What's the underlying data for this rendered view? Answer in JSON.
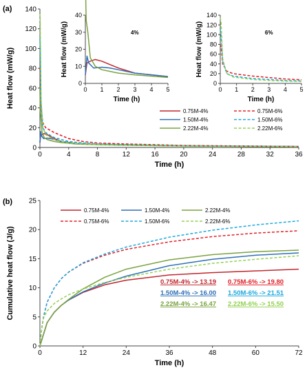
{
  "chart_data": [
    {
      "panel": "(a)",
      "type": "line",
      "xlabel": "Time (h)",
      "ylabel": "Heat flow (mW/g)",
      "xlim": [
        0,
        36
      ],
      "ylim": [
        0,
        140
      ],
      "xticks": [
        0,
        4,
        8,
        12,
        16,
        20,
        24,
        28,
        32,
        36
      ],
      "yticks": [
        0,
        20,
        40,
        60,
        80,
        100,
        120,
        140
      ],
      "legend_position": "lower-right",
      "grid": false,
      "series": [
        {
          "name": "0.75M-4%",
          "color": "#c0262d",
          "dash": "solid",
          "x": [
            0,
            0.1,
            0.3,
            0.6,
            1,
            1.5,
            2,
            3,
            5,
            8,
            12,
            20,
            36
          ],
          "y": [
            5,
            12,
            13,
            14,
            13,
            11,
            9,
            6,
            4,
            3,
            2.5,
            1.6,
            0.8
          ]
        },
        {
          "name": "1.50M-4%",
          "color": "#2e6fb7",
          "dash": "solid",
          "x": [
            0,
            0.1,
            0.2,
            0.5,
            1,
            1.5,
            2,
            3,
            5,
            8,
            12,
            20,
            36
          ],
          "y": [
            5,
            16,
            12,
            9,
            9.5,
            9,
            8,
            6,
            4,
            3,
            2.5,
            1.6,
            0.8
          ]
        },
        {
          "name": "2.22M-4%",
          "color": "#7aa23f",
          "dash": "solid",
          "x": [
            0,
            0.05,
            0.15,
            0.3,
            0.6,
            1,
            1.5,
            2,
            3,
            5,
            8,
            12,
            20,
            36
          ],
          "y": [
            60,
            37,
            30,
            15,
            10,
            8,
            7,
            6,
            5,
            3.5,
            2.8,
            2.2,
            1.4,
            0.8
          ]
        },
        {
          "name": "0.75M-6%",
          "color": "#e11e26",
          "dash": "dashed",
          "x": [
            0,
            0.05,
            0.15,
            0.4,
            0.8,
            1.5,
            2,
            3,
            4,
            6,
            8,
            12,
            20,
            36
          ],
          "y": [
            80,
            75,
            40,
            25,
            20,
            17,
            15,
            12,
            9,
            6,
            4.5,
            3.5,
            2,
            1
          ]
        },
        {
          "name": "1.50M-6%",
          "color": "#1ba8de",
          "dash": "dashed",
          "x": [
            0,
            0.05,
            0.15,
            0.4,
            0.8,
            1.5,
            2,
            3,
            4,
            6,
            8,
            12,
            20,
            36
          ],
          "y": [
            110,
            100,
            45,
            20,
            15,
            12,
            10,
            8,
            6,
            4.5,
            3.5,
            2.8,
            1.8,
            1
          ]
        },
        {
          "name": "2.22M-6%",
          "color": "#92d050",
          "dash": "dashed",
          "x": [
            0,
            0.05,
            0.15,
            0.4,
            0.8,
            1.5,
            2,
            3,
            4,
            6,
            8,
            12,
            20,
            36
          ],
          "y": [
            135,
            125,
            50,
            20,
            13,
            10,
            8,
            6,
            4.5,
            3.5,
            3,
            2.3,
            1.5,
            0.8
          ]
        }
      ],
      "insets": [
        {
          "label": "4%",
          "xlabel": "Time (h)",
          "ylabel": "Heat flow (mW/g)",
          "xlim": [
            0,
            5
          ],
          "ylim": [
            0,
            40
          ],
          "xticks": [
            0,
            1,
            2,
            3,
            4,
            5
          ],
          "yticks": [
            0,
            10,
            20,
            30,
            40
          ],
          "series_names": [
            "0.75M-4%",
            "1.50M-4%",
            "2.22M-4%"
          ]
        },
        {
          "label": "6%",
          "xlabel": "Time (h)",
          "ylabel": "Heat flow (mW/g)",
          "xlim": [
            0,
            5
          ],
          "ylim": [
            0,
            140
          ],
          "xticks": [
            0,
            1,
            2,
            3,
            4,
            5
          ],
          "yticks": [
            0,
            20,
            40,
            60,
            80,
            100,
            120,
            140
          ],
          "series_names": [
            "0.75M-6%",
            "1.50M-6%",
            "2.22M-6%"
          ]
        }
      ]
    },
    {
      "panel": "(b)",
      "type": "line",
      "xlabel": "Time (h)",
      "ylabel": "Cumulative heat flow (J/g)",
      "xlim": [
        0,
        72
      ],
      "ylim": [
        0,
        25
      ],
      "xticks": [
        0,
        12,
        24,
        36,
        48,
        60,
        72
      ],
      "yticks": [
        0,
        5,
        10,
        15,
        20,
        25
      ],
      "legend_position": "top",
      "grid": false,
      "series": [
        {
          "name": "0.75M-4%",
          "color": "#c0262d",
          "dash": "solid",
          "x": [
            0,
            1,
            2,
            4,
            6,
            8,
            12,
            18,
            24,
            36,
            48,
            60,
            72
          ],
          "y": [
            0,
            2,
            4,
            5.8,
            7,
            7.9,
            9.2,
            10.5,
            11.3,
            12.2,
            12.6,
            12.9,
            13.19
          ]
        },
        {
          "name": "1.50M-4%",
          "color": "#2e6fb7",
          "dash": "solid",
          "x": [
            0,
            1,
            2,
            4,
            6,
            8,
            12,
            18,
            24,
            36,
            48,
            60,
            72
          ],
          "y": [
            0,
            2,
            4,
            5.8,
            7,
            7.9,
            9.3,
            10.8,
            12,
            13.8,
            14.9,
            15.6,
            16.0
          ]
        },
        {
          "name": "2.22M-4%",
          "color": "#7aa23f",
          "dash": "solid",
          "x": [
            0,
            1,
            2,
            4,
            6,
            8,
            12,
            18,
            24,
            36,
            48,
            60,
            72
          ],
          "y": [
            0,
            2,
            4,
            5.8,
            7,
            8,
            9.8,
            11.8,
            13.2,
            14.8,
            15.7,
            16.2,
            16.47
          ]
        },
        {
          "name": "0.75M-6%",
          "color": "#e11e26",
          "dash": "dashed",
          "x": [
            0,
            0.5,
            1,
            2,
            4,
            6,
            8,
            12,
            18,
            24,
            36,
            48,
            60,
            72
          ],
          "y": [
            0,
            3,
            5,
            7.5,
            10,
            11.6,
            12.7,
            14.2,
            15.6,
            16.6,
            17.9,
            18.8,
            19.4,
            19.8
          ]
        },
        {
          "name": "1.50M-6%",
          "color": "#1ba8de",
          "dash": "dashed",
          "x": [
            0,
            0.5,
            1,
            2,
            4,
            6,
            8,
            12,
            18,
            24,
            36,
            48,
            60,
            72
          ],
          "y": [
            0,
            3,
            5,
            7.5,
            10,
            11.6,
            12.7,
            14.3,
            15.8,
            17,
            18.7,
            19.9,
            20.8,
            21.51
          ]
        },
        {
          "name": "2.22M-6%",
          "color": "#92d050",
          "dash": "dashed",
          "x": [
            0,
            0.5,
            1,
            2,
            4,
            6,
            8,
            12,
            18,
            24,
            36,
            48,
            60,
            72
          ],
          "y": [
            0,
            3,
            4.8,
            6,
            7.3,
            8.1,
            8.8,
            9.8,
            10.9,
            11.8,
            13.2,
            14.2,
            14.9,
            15.5
          ]
        }
      ],
      "annotations": [
        {
          "text": "0.75M-4% -> 13.19",
          "color": "#c0262d"
        },
        {
          "text": "0.75M-6% -> 19.80",
          "color": "#e11e26"
        },
        {
          "text": "1.50M-4% -> 16.00",
          "color": "#2e6fb7"
        },
        {
          "text": "1.50M-6% -> 21.51",
          "color": "#1ba8de"
        },
        {
          "text": "2.22M-4% -> 16.47",
          "color": "#7aa23f"
        },
        {
          "text": "2.22M-6% -> 15.50",
          "color": "#92d050"
        }
      ]
    }
  ]
}
